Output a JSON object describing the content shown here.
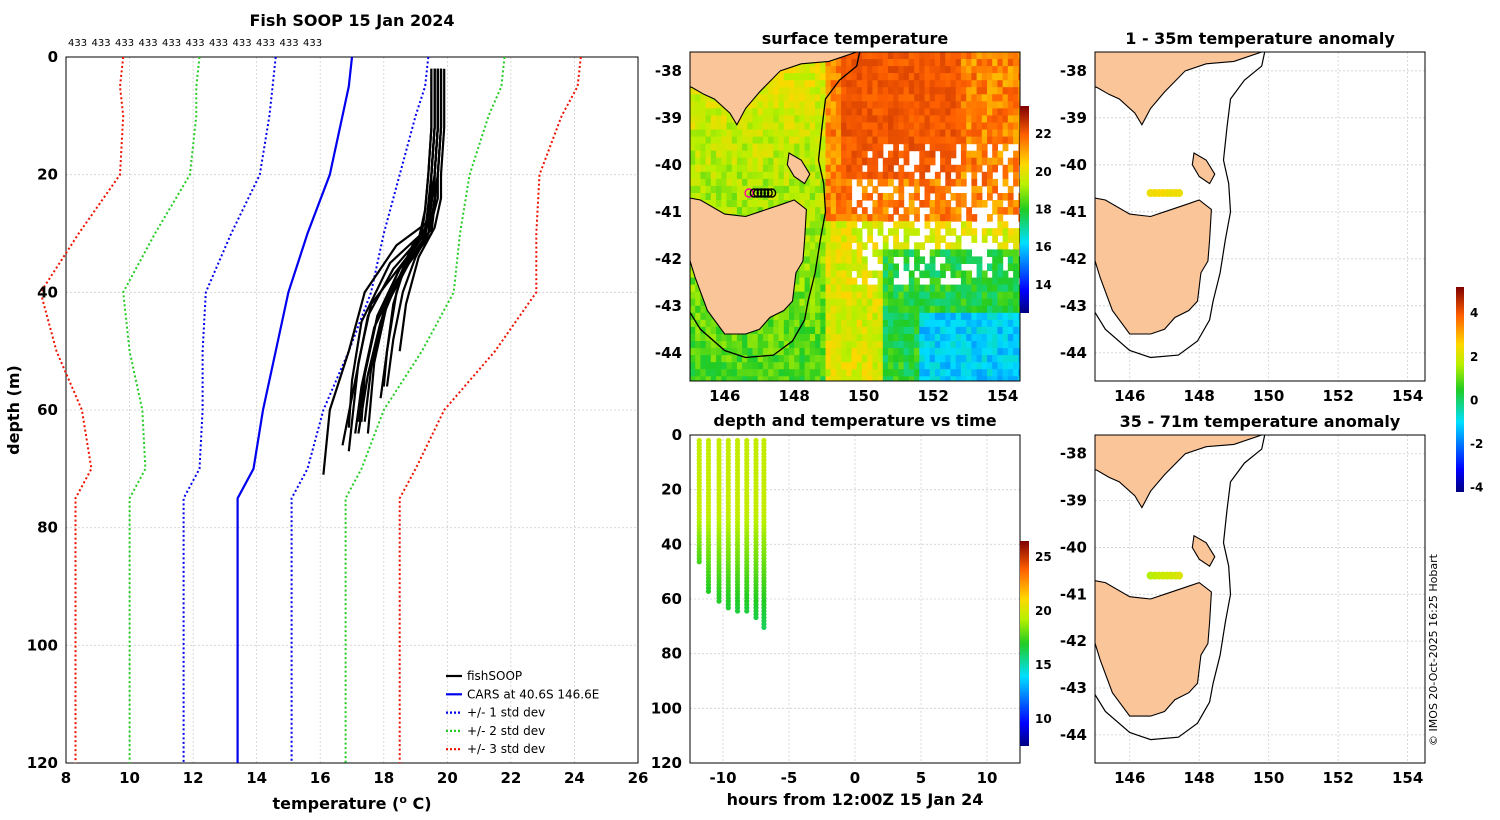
{
  "figure": {
    "credit": "© IMOS 20-Oct-2025 16:25 Hobart"
  },
  "chart_data": [
    {
      "type": "line",
      "id": "profile",
      "title": "Fish SOOP 15 Jan 2024",
      "xlabel": "temperature (",
      "xlabel_sup": "o",
      "xlabel_end": " C)",
      "ylabel": "depth (m)",
      "xlim": [
        8,
        26
      ],
      "ylim": [
        0,
        120
      ],
      "xticks": [
        "8",
        "10",
        "12",
        "14",
        "16",
        "18",
        "20",
        "22",
        "24",
        "26"
      ],
      "yticks": [
        "0",
        "20",
        "40",
        "60",
        "80",
        "100",
        "120"
      ],
      "count_labels": [
        "433",
        "433",
        "433",
        "433",
        "433",
        "433",
        "433",
        "433",
        "433",
        "433",
        "433"
      ],
      "legend": [
        {
          "label": "fishSOOP",
          "color": "#000000",
          "style": "solid"
        },
        {
          "label": "CARS at 40.6S 146.6E",
          "color": "#0000ee",
          "style": "solid"
        },
        {
          "label": "+/- 1 std dev",
          "color": "#0000ee",
          "style": "dotted"
        },
        {
          "label": "+/- 2 std dev",
          "color": "#22cc22",
          "style": "dotted"
        },
        {
          "label": "+/- 3 std dev",
          "color": "#ee1100",
          "style": "dotted"
        }
      ],
      "cars_depths": [
        0,
        5,
        10,
        20,
        30,
        40,
        50,
        60,
        70,
        75,
        80,
        100,
        120
      ],
      "cars_mean": [
        17.0,
        16.9,
        16.7,
        16.3,
        15.6,
        15.0,
        14.6,
        14.2,
        13.9,
        13.4,
        13.4,
        13.4,
        13.4
      ],
      "cars_std": [
        2.4,
        2.4,
        2.3,
        2.2,
        2.4,
        2.6,
        2.3,
        1.9,
        1.7,
        1.7,
        1.7,
        1.7,
        1.7
      ],
      "fish_casts": [
        {
          "t": [
            19.6,
            19.6,
            19.5,
            19.4,
            19.3,
            18.6,
            17.6,
            17.2,
            17.0,
            16.9
          ],
          "d": [
            2,
            12,
            20,
            25,
            30,
            35,
            42,
            52,
            62,
            67
          ]
        },
        {
          "t": [
            19.6,
            19.6,
            19.5,
            19.5,
            19.4,
            18.4,
            17.4,
            16.9,
            16.3,
            16.1
          ],
          "d": [
            2,
            12,
            20,
            24,
            28,
            32,
            40,
            50,
            60,
            71
          ]
        },
        {
          "t": [
            19.5,
            19.5,
            19.4,
            19.3,
            19.2,
            18.2,
            17.3,
            17.0,
            16.9
          ],
          "d": [
            2,
            12,
            20,
            26,
            30,
            35,
            45,
            55,
            63
          ]
        },
        {
          "t": [
            19.8,
            19.8,
            19.7,
            19.6,
            19.5,
            18.8,
            18.1,
            17.7,
            17.5
          ],
          "d": [
            2,
            12,
            20,
            25,
            30,
            35,
            42,
            52,
            64
          ]
        },
        {
          "t": [
            19.7,
            19.7,
            19.6,
            19.6,
            19.5,
            18.9,
            18.4,
            18.1,
            17.9
          ],
          "d": [
            2,
            12,
            20,
            24,
            28,
            32,
            40,
            50,
            58
          ]
        },
        {
          "t": [
            19.6,
            19.6,
            19.5,
            19.4,
            19.3,
            18.5,
            17.8,
            17.4,
            17.3
          ],
          "d": [
            2,
            12,
            20,
            26,
            31,
            36,
            44,
            54,
            62
          ]
        },
        {
          "t": [
            19.8,
            19.8,
            19.7,
            19.7,
            19.5,
            18.8,
            18.3,
            18.1,
            18.0
          ],
          "d": [
            2,
            12,
            20,
            24,
            28,
            33,
            42,
            50,
            56
          ]
        },
        {
          "t": [
            19.7,
            19.7,
            19.6,
            19.6,
            19.4,
            18.6,
            17.9,
            17.5,
            17.2
          ],
          "d": [
            2,
            12,
            20,
            25,
            30,
            36,
            45,
            54,
            64
          ]
        },
        {
          "t": [
            19.5,
            19.5,
            19.4,
            19.3,
            19.1,
            18.3,
            17.5,
            17.1,
            16.7
          ],
          "d": [
            2,
            12,
            20,
            26,
            31,
            36,
            44,
            55,
            66
          ]
        },
        {
          "t": [
            19.8,
            19.8,
            19.7,
            19.6,
            19.5,
            19.0,
            18.6,
            18.3,
            18.1
          ],
          "d": [
            2,
            12,
            20,
            24,
            29,
            34,
            40,
            48,
            56
          ]
        },
        {
          "t": [
            19.7,
            19.7,
            19.6,
            19.5,
            19.4,
            18.7,
            18.0,
            17.6,
            17.4
          ],
          "d": [
            2,
            12,
            20,
            25,
            30,
            35,
            43,
            53,
            62
          ]
        },
        {
          "t": [
            19.9,
            19.9,
            19.8,
            19.8,
            19.6,
            19.1,
            18.7,
            18.5
          ],
          "d": [
            2,
            12,
            20,
            24,
            29,
            34,
            42,
            50
          ]
        },
        {
          "t": [
            19.6,
            19.6,
            19.5,
            19.4,
            19.2,
            18.4,
            17.7,
            17.3,
            17.1
          ],
          "d": [
            2,
            12,
            20,
            26,
            32,
            38,
            46,
            56,
            64
          ]
        },
        {
          "t": [
            19.7,
            19.7,
            19.6,
            19.5,
            19.3,
            18.5,
            17.8,
            17.4,
            17.2
          ],
          "d": [
            2,
            12,
            20,
            25,
            30,
            36,
            44,
            54,
            62
          ]
        }
      ]
    },
    {
      "type": "heatmap",
      "id": "sst_map",
      "title": "surface temperature",
      "xlim": [
        145,
        154.5
      ],
      "ylim": [
        -44.6,
        -37.6
      ],
      "xticks": [
        "146",
        "148",
        "150",
        "152",
        "154"
      ],
      "yticks": [
        "-38",
        "-39",
        "-40",
        "-41",
        "-42",
        "-43",
        "-44"
      ],
      "colorbar": {
        "min": 12.5,
        "max": 23.5,
        "ticks": [
          "14",
          "16",
          "18",
          "20",
          "22"
        ]
      },
      "cast_lon": [
        146.7,
        146.85,
        146.95,
        147.05,
        147.15,
        147.25,
        147.35
      ],
      "cast_lat": -40.6
    },
    {
      "type": "scatter",
      "id": "depth_time",
      "title": "depth and temperature vs time",
      "xlabel": "hours from 12:00Z 15 Jan 24",
      "xlim": [
        -12.5,
        12.5
      ],
      "ylim": [
        0,
        120
      ],
      "xticks": [
        "-10",
        "-5",
        "0",
        "5",
        "10"
      ],
      "yticks": [
        "0",
        "20",
        "40",
        "60",
        "80",
        "100",
        "120"
      ],
      "colorbar": {
        "min": 7.5,
        "max": 26.5,
        "ticks": [
          "10",
          "15",
          "20",
          "25"
        ]
      },
      "casts": [
        {
          "hour": -11.8,
          "max_depth": 47,
          "t_bottom": 17.5
        },
        {
          "hour": -11.1,
          "max_depth": 58,
          "t_bottom": 16.9
        },
        {
          "hour": -10.3,
          "max_depth": 62,
          "t_bottom": 16.8
        },
        {
          "hour": -9.6,
          "max_depth": 64,
          "t_bottom": 16.7
        },
        {
          "hour": -8.9,
          "max_depth": 65,
          "t_bottom": 16.6
        },
        {
          "hour": -8.2,
          "max_depth": 65,
          "t_bottom": 16.6
        },
        {
          "hour": -7.5,
          "max_depth": 67,
          "t_bottom": 16.5
        },
        {
          "hour": -6.9,
          "max_depth": 71,
          "t_bottom": 16.2
        }
      ]
    },
    {
      "type": "scatter",
      "id": "anom_shallow",
      "title": "1 - 35m temperature anomaly",
      "xlim": [
        145,
        154.5
      ],
      "ylim": [
        -44.6,
        -37.6
      ],
      "xticks": [
        "146",
        "148",
        "150",
        "152",
        "154"
      ],
      "yticks": [
        "-38",
        "-39",
        "-40",
        "-41",
        "-42",
        "-43",
        "-44"
      ],
      "points_lon": [
        146.6,
        146.72,
        146.84,
        146.96,
        147.08,
        147.2,
        147.32,
        147.42
      ],
      "points_lat": -40.6,
      "anomaly": [
        2.3,
        2.4,
        2.4,
        2.5,
        2.4,
        2.3,
        2.4,
        2.3
      ]
    },
    {
      "type": "scatter",
      "id": "anom_deep",
      "title": "35 - 71m temperature anomaly",
      "xlim": [
        145,
        154.5
      ],
      "ylim": [
        -44.6,
        -37.6
      ],
      "xticks": [
        "146",
        "148",
        "150",
        "152",
        "154"
      ],
      "yticks": [
        "-38",
        "-39",
        "-40",
        "-41",
        "-42",
        "-43",
        "-44"
      ],
      "points_lon": [
        146.6,
        146.72,
        146.84,
        146.96,
        147.08,
        147.2,
        147.32,
        147.42
      ],
      "points_lat": -40.6,
      "anomaly": [
        1.6,
        1.7,
        1.8,
        1.9,
        1.9,
        2.0,
        1.9,
        2.1
      ],
      "colorbar": {
        "min": -4.2,
        "max": 5.2,
        "ticks": [
          "4",
          "2",
          "0",
          "-2",
          "-4"
        ]
      }
    }
  ]
}
